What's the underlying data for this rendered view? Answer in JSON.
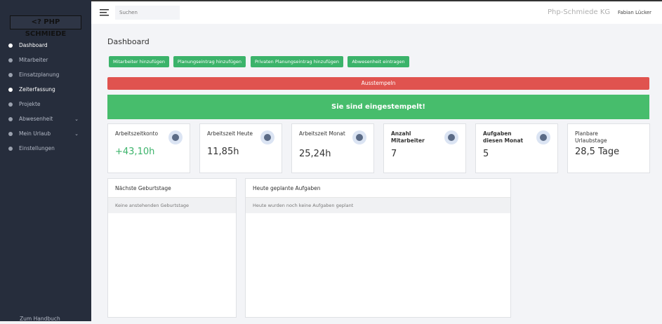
{
  "sidebar": {
    "logo": "<? PHP SCHMIEDE",
    "menu": [
      "Dashboard",
      "Mitarbeiter",
      "Einsatzplanung",
      "Zeiterfassung",
      "Projekte",
      "Abwesenheit",
      "Mein Urlaub",
      "Einstellungen"
    ],
    "footer": "Zum Handbuch"
  },
  "topbar": {
    "search_placeholder": "Suchen",
    "company": "Php-Schmiede KG",
    "user": "Fabian Lücker"
  },
  "page_title": "Dashboard",
  "buttons": [
    "Mitarbeiter hinzufügen",
    "Planungseintrag hinzufügen",
    "Privaten Planungseintrag hinzufügen",
    "Abwesenheit eintragen"
  ],
  "clock_out": "Ausstempeln",
  "status": "Sie sind eingestempelt!",
  "cards": [
    {
      "label": "Arbeitszeitkonto",
      "value": "+43,10h"
    },
    {
      "label": "Arbeitszeit Heute",
      "value": "11,85h"
    },
    {
      "label": "Arbeitszeit Monat",
      "value": "25,24h"
    },
    {
      "label": "Anzahl Mitarbeiter",
      "value": "7"
    },
    {
      "label": "Aufgaben diesen Monat",
      "value": "5"
    },
    {
      "label": "Planbare Urlaubstage",
      "value": "28,5 Tage"
    }
  ],
  "panels": [
    {
      "title": "Nächste Geburtstage",
      "empty": "Keine anstehenden Geburtstage"
    },
    {
      "title": "Heute geplante Aufgaben",
      "empty": "Heute wurden noch keine Aufgaben geplant"
    }
  ]
}
